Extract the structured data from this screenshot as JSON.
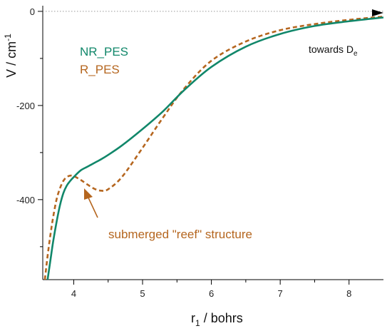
{
  "chart_data": {
    "type": "line",
    "xlabel": {
      "base": "r",
      "sub": "1",
      "rest": " / bohrs"
    },
    "ylabel": {
      "base": "V / cm",
      "sup": "-1"
    },
    "xlim": [
      3.55,
      8.5
    ],
    "ylim": [
      -570,
      12
    ],
    "xticks": [
      4,
      5,
      6,
      7,
      8
    ],
    "yticks": [
      0,
      -200,
      -400
    ],
    "minor_xticks": [
      3.5,
      4.5,
      5.5,
      6.5,
      7.5
    ],
    "minor_yticks": [
      -100,
      -300,
      -500
    ],
    "zero_line": true,
    "colors": {
      "nr": "#11876a",
      "r": "#b5661f"
    },
    "series": [
      {
        "name": "NR_PES",
        "style": "solid",
        "x": [
          3.62,
          3.66,
          3.7,
          3.75,
          3.8,
          3.85,
          3.9,
          3.95,
          4.0,
          4.1,
          4.2,
          4.3,
          4.4,
          4.5,
          4.7,
          5.0,
          5.3,
          5.6,
          6.0,
          6.5,
          7.0,
          7.5,
          8.0,
          8.5
        ],
        "y": [
          -570,
          -530,
          -490,
          -448,
          -412,
          -386,
          -370,
          -360,
          -352,
          -338,
          -330,
          -322,
          -314,
          -305,
          -285,
          -250,
          -212,
          -168,
          -118,
          -75,
          -48,
          -31,
          -21,
          -13
        ]
      },
      {
        "name": "R_PES",
        "style": "dashed",
        "x": [
          3.58,
          3.62,
          3.66,
          3.7,
          3.75,
          3.8,
          3.85,
          3.9,
          3.95,
          4.0,
          4.1,
          4.2,
          4.3,
          4.4,
          4.5,
          4.7,
          5.0,
          5.3,
          5.6,
          6.0,
          6.5,
          7.0,
          7.5,
          8.0,
          8.5
        ],
        "y": [
          -570,
          -520,
          -476,
          -438,
          -400,
          -376,
          -360,
          -352,
          -349,
          -350,
          -358,
          -368,
          -377,
          -381,
          -378,
          -352,
          -290,
          -225,
          -165,
          -105,
          -64,
          -40,
          -27,
          -18,
          -11
        ]
      }
    ],
    "annotations": {
      "towards_label": "towards D",
      "towards_sub": "e",
      "reef_label": "submerged \"reef\" structure"
    }
  }
}
